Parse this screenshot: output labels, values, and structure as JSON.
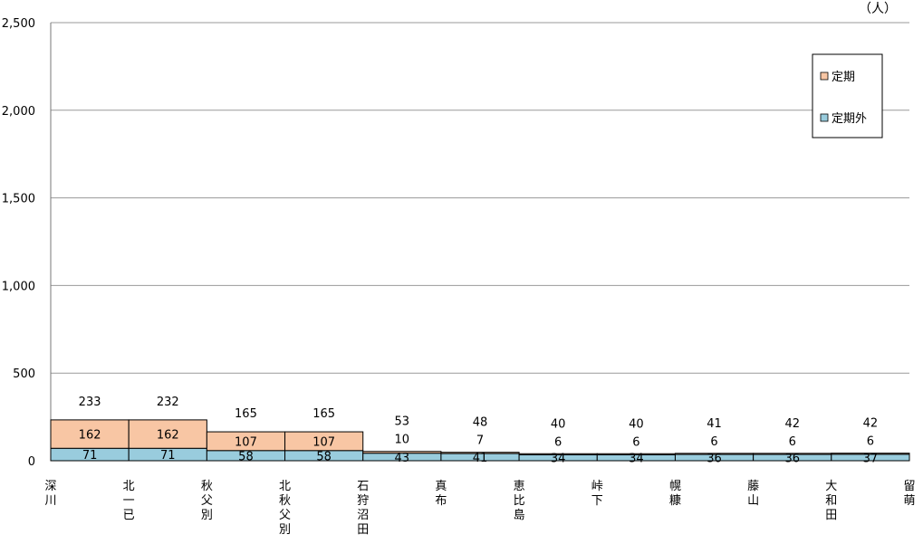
{
  "chart_data": {
    "type": "bar",
    "stacked": true,
    "unit_label": "（人）",
    "categories": [
      "深川",
      "北一已",
      "秋父別",
      "北秋父別",
      "石狩沼田",
      "真布",
      "恵比島",
      "峠下",
      "幌糠",
      "藤山",
      "大和田"
    ],
    "end_label": "留萌",
    "series": [
      {
        "name": "定期外",
        "values": [
          71,
          71,
          58,
          58,
          43,
          41,
          34,
          34,
          36,
          36,
          37
        ],
        "color": "#99CCDD"
      },
      {
        "name": "定期",
        "values": [
          162,
          162,
          107,
          107,
          10,
          7,
          6,
          6,
          6,
          6,
          6
        ],
        "color": "#F8C6A4"
      }
    ],
    "totals": [
      233,
      232,
      165,
      165,
      53,
      48,
      40,
      40,
      41,
      42,
      42
    ],
    "ylim": [
      0,
      2500
    ],
    "yticks": [
      0,
      500,
      1000,
      1500,
      2000,
      2500
    ],
    "ytick_labels": [
      "0",
      "500",
      "1,000",
      "1,500",
      "2,000",
      "2,500"
    ],
    "grid": true,
    "legend_position": "top-right"
  }
}
